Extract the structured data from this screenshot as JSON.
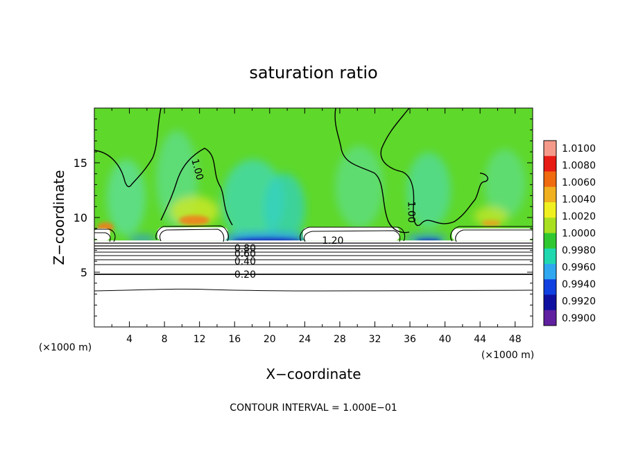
{
  "chart_data": {
    "type": "heatmap",
    "title": "saturation ratio",
    "xlabel": "X−coordinate",
    "ylabel": "Z−coordinate",
    "x_unit_label": "(×1000 m)",
    "y_unit_label": "(×1000 m)",
    "xlim": [
      0,
      50
    ],
    "ylim": [
      0,
      20
    ],
    "x_ticks": [
      4,
      8,
      12,
      16,
      20,
      24,
      28,
      32,
      36,
      40,
      44,
      48
    ],
    "y_ticks": [
      5,
      10,
      15
    ],
    "footer": "CONTOUR INTERVAL = 1.000E−01",
    "colorbar": {
      "levels": [
        "1.0100",
        "1.0080",
        "1.0060",
        "1.0040",
        "1.0020",
        "1.0000",
        "0.9980",
        "0.9960",
        "0.9940",
        "0.9920",
        "0.9900"
      ],
      "colors": [
        "#f59a8a",
        "#e81a14",
        "#f06a10",
        "#f0b020",
        "#f0f020",
        "#a8e020",
        "#30c830",
        "#20d8b0",
        "#30a8f0",
        "#1040e0",
        "#1010a0",
        "#6020a0"
      ]
    },
    "contour_labels": [
      {
        "text": "1.00",
        "x": 11.8,
        "z": 14.4,
        "rotate": 75
      },
      {
        "text": "1.00",
        "x": 36.2,
        "z": 10.5,
        "rotate": 90
      },
      {
        "text": "1.20",
        "x": 27.2,
        "z": 7.9,
        "rotate": 0
      },
      {
        "text": "0.80",
        "x": 17.2,
        "z": 7.2,
        "rotate": 0
      },
      {
        "text": "0.60",
        "x": 17.2,
        "z": 6.7,
        "rotate": 0
      },
      {
        "text": "0.40",
        "x": 17.2,
        "z": 6.0,
        "rotate": 0
      },
      {
        "text": "0.20",
        "x": 17.2,
        "z": 4.8,
        "rotate": 0
      }
    ],
    "cloud_regions": [
      {
        "x0": 0.0,
        "x1": 1.8,
        "z0": 7.9,
        "z1": 9.0
      },
      {
        "x0": 7.2,
        "x1": 15.2,
        "z0": 7.9,
        "z1": 9.1
      },
      {
        "x0": 23.8,
        "x1": 34.8,
        "z0": 7.9,
        "z1": 9.1
      },
      {
        "x0": 40.8,
        "x1": 50.0,
        "z0": 7.9,
        "z1": 9.0
      }
    ],
    "dry_layer_top_z": 7.9
  }
}
